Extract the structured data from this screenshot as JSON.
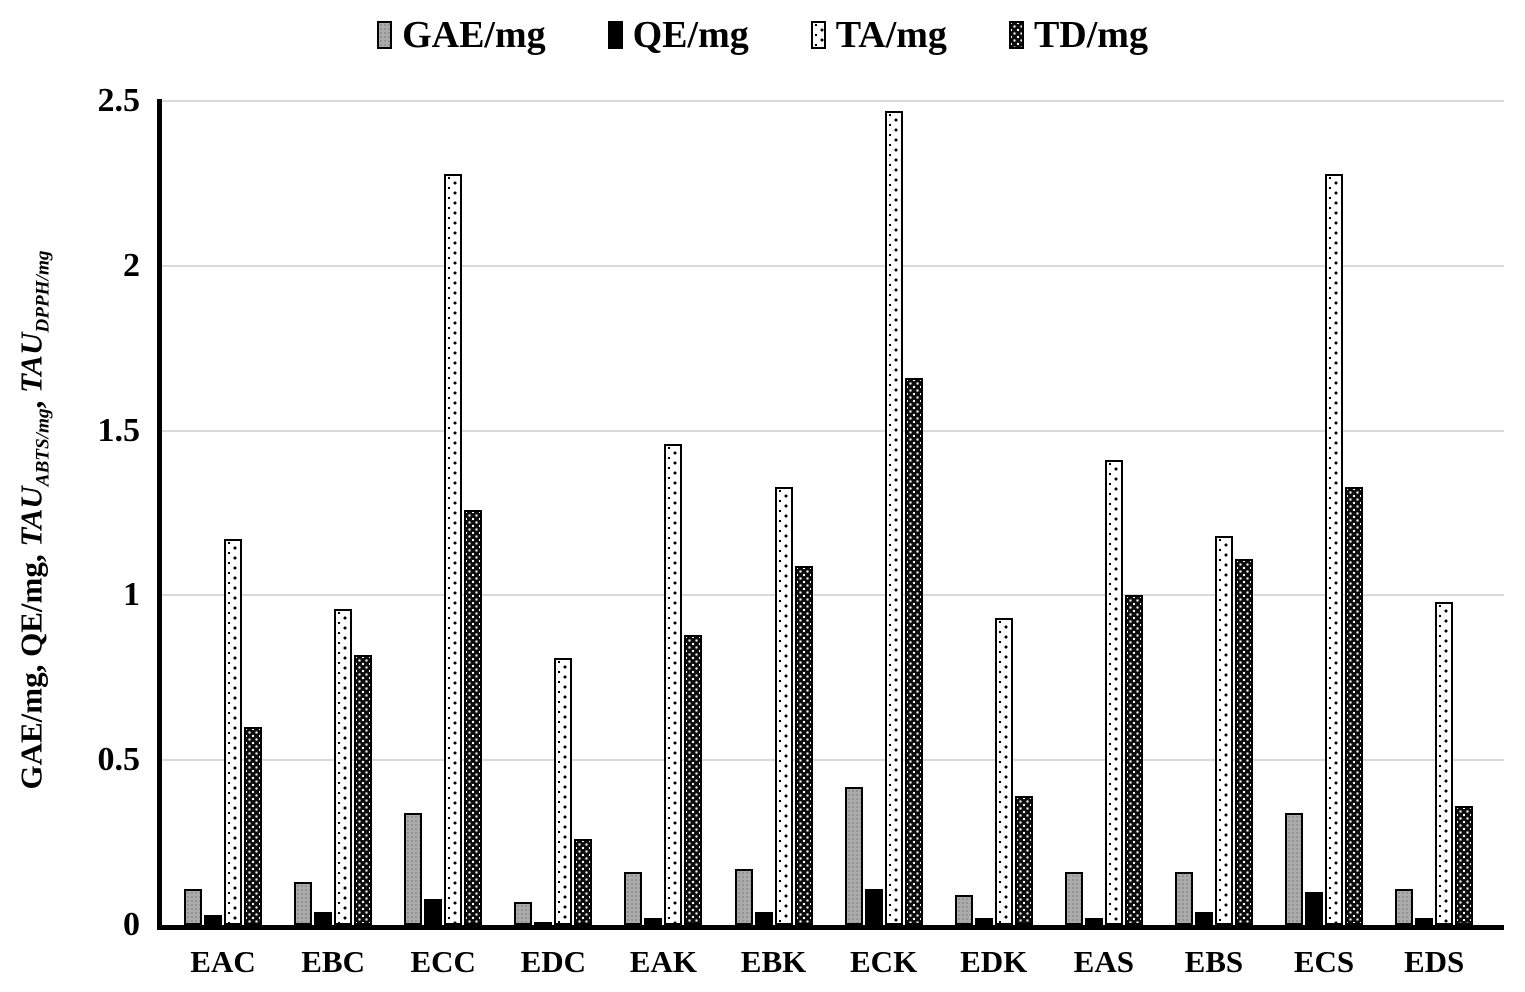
{
  "chart_data": {
    "type": "bar",
    "title": "",
    "xlabel": "",
    "ylabel_plain": "GAE/mg, QE/mg, TAU_ABTS/mg, TAU_DPPH/mg",
    "ylabel_parts": [
      {
        "text": "GAE/mg, QE/mg, ",
        "style": "normal"
      },
      {
        "text": "TAU",
        "style": "italic"
      },
      {
        "text": "ABTS/mg",
        "style": "sub"
      },
      {
        "text": ", ",
        "style": "normal"
      },
      {
        "text": "TAU",
        "style": "italic"
      },
      {
        "text": "DPPH/mg",
        "style": "sub"
      }
    ],
    "categories": [
      "EAC",
      "EBC",
      "ECC",
      "EDC",
      "EAK",
      "EBK",
      "ECK",
      "EDK",
      "EAS",
      "EBS",
      "ECS",
      "EDS"
    ],
    "series": [
      {
        "name": "GAE/mg",
        "pattern": "solid-gray",
        "color": "#ababab",
        "values": [
          0.11,
          0.13,
          0.34,
          0.07,
          0.16,
          0.17,
          0.42,
          0.09,
          0.16,
          0.16,
          0.34,
          0.11
        ]
      },
      {
        "name": "QE/mg",
        "pattern": "solid-black",
        "color": "#000000",
        "values": [
          0.03,
          0.04,
          0.08,
          0.01,
          0.02,
          0.04,
          0.11,
          0.02,
          0.02,
          0.04,
          0.1,
          0.02
        ]
      },
      {
        "name": "TA/mg",
        "pattern": "dots-on-white",
        "color": "#ffffff",
        "values": [
          1.17,
          0.96,
          2.28,
          0.81,
          1.46,
          1.33,
          2.47,
          0.93,
          1.41,
          1.18,
          2.28,
          0.98
        ]
      },
      {
        "name": "TD/mg",
        "pattern": "dots-on-black",
        "color": "#0d0d0d",
        "values": [
          0.6,
          0.82,
          1.26,
          0.26,
          0.88,
          1.09,
          1.66,
          0.39,
          1.0,
          1.11,
          1.33,
          0.36
        ]
      }
    ],
    "yticks": [
      0,
      0.5,
      1,
      1.5,
      2,
      2.5
    ],
    "ytick_labels": [
      "0",
      "0.5",
      "1",
      "1.5",
      "2",
      "2.5"
    ],
    "ylim": [
      0,
      2.5
    ],
    "grid": "horizontal",
    "grid_color": "#d9d9d9",
    "axis_color": "#000000",
    "bar_border_color": "#000000",
    "legend_position": "top"
  }
}
